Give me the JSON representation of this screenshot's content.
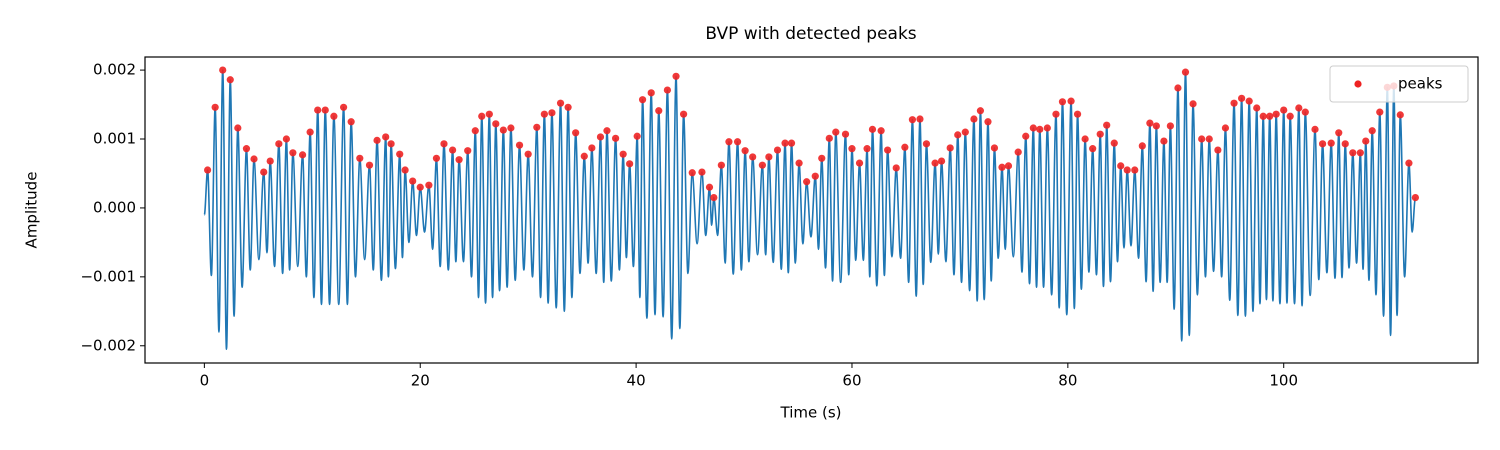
{
  "chart_data": {
    "type": "line",
    "title": "BVP with detected peaks",
    "xlabel": "Time (s)",
    "ylabel": "Amplitude",
    "xlim": [
      -5.5,
      118
    ],
    "ylim": [
      -0.00225,
      0.00219
    ],
    "xticks": [
      0,
      20,
      40,
      60,
      80,
      100
    ],
    "yticks": [
      {
        "value": -0.002,
        "label": "−0.002"
      },
      {
        "value": -0.001,
        "label": "−0.001"
      },
      {
        "value": 0,
        "label": "0.000"
      },
      0.001,
      0.002
    ],
    "legend": "upper right",
    "series": [
      {
        "type": "line",
        "color": "#1f77b4",
        "x": [
          0,
          0.3,
          0.65,
          1.0,
          1.35,
          1.7,
          2.05,
          2.4,
          2.75,
          3.1,
          3.5,
          3.9,
          4.25,
          4.6,
          5.05,
          5.5,
          5.8,
          6.1,
          6.5,
          6.9,
          7.25,
          7.6,
          7.9,
          8.2,
          8.65,
          9.1,
          9.45,
          9.8,
          10.15,
          10.5,
          10.85,
          11.2,
          11.6,
          12.0,
          12.45,
          12.9,
          13.25,
          13.6,
          14.0,
          14.4,
          14.85,
          15.3,
          15.65,
          16.0,
          16.4,
          16.8,
          17.05,
          17.3,
          17.7,
          18.1,
          18.35,
          18.6,
          18.95,
          19.3,
          19.65,
          20.0,
          20.4,
          20.8,
          21.15,
          21.5,
          21.85,
          22.2,
          22.6,
          23.0,
          23.3,
          23.6,
          24.0,
          24.4,
          24.75,
          25.1,
          25.4,
          25.7,
          26.05,
          26.4,
          26.7,
          27.0,
          27.35,
          27.7,
          28.05,
          28.4,
          28.8,
          29.2,
          29.6,
          30.0,
          30.4,
          30.8,
          31.15,
          31.5,
          31.85,
          32.2,
          32.6,
          33.0,
          33.35,
          33.7,
          34.05,
          34.4,
          34.8,
          35.2,
          35.55,
          35.9,
          36.3,
          36.7,
          37.0,
          37.3,
          37.7,
          38.1,
          38.45,
          38.8,
          39.1,
          39.4,
          39.75,
          40.1,
          40.35,
          40.6,
          41.0,
          41.4,
          41.75,
          42.1,
          42.5,
          42.9,
          43.3,
          43.7,
          44.05,
          44.4,
          44.8,
          45.2,
          45.65,
          46.1,
          46.45,
          46.8,
          47.0,
          47.2,
          47.55,
          47.9,
          48.25,
          48.6,
          49.0,
          49.4,
          49.75,
          50.1,
          50.45,
          50.8,
          51.25,
          51.7,
          52.0,
          52.3,
          52.7,
          53.1,
          53.45,
          53.8,
          54.1,
          54.4,
          54.75,
          55.1,
          55.45,
          55.8,
          56.2,
          56.6,
          56.9,
          57.2,
          57.55,
          57.9,
          58.2,
          58.5,
          58.95,
          59.4,
          59.7,
          60.0,
          60.35,
          60.7,
          61.05,
          61.4,
          61.65,
          61.9,
          62.3,
          62.7,
          63.0,
          63.3,
          63.7,
          64.1,
          64.5,
          64.9,
          65.25,
          65.6,
          65.95,
          66.3,
          66.6,
          66.9,
          67.3,
          67.7,
          68.0,
          68.3,
          68.7,
          69.1,
          69.45,
          69.8,
          70.15,
          70.5,
          70.9,
          71.3,
          71.6,
          71.9,
          72.25,
          72.6,
          72.9,
          73.2,
          73.55,
          73.9,
          74.2,
          74.5,
          74.95,
          75.4,
          75.75,
          76.1,
          76.45,
          76.8,
          77.1,
          77.4,
          77.75,
          78.1,
          78.5,
          78.9,
          79.2,
          79.5,
          79.9,
          80.3,
          80.6,
          80.9,
          81.25,
          81.6,
          81.95,
          82.3,
          82.65,
          83.0,
          83.3,
          83.6,
          83.95,
          84.3,
          84.6,
          84.9,
          85.2,
          85.5,
          85.85,
          86.2,
          86.55,
          86.9,
          87.25,
          87.6,
          87.9,
          88.2,
          88.55,
          88.9,
          89.2,
          89.5,
          89.85,
          90.2,
          90.55,
          90.9,
          91.25,
          91.6,
          92.0,
          92.4,
          92.75,
          93.1,
          93.5,
          93.9,
          94.25,
          94.6,
          95.0,
          95.4,
          95.75,
          96.1,
          96.45,
          96.8,
          97.15,
          97.5,
          97.8,
          98.1,
          98.4,
          98.7,
          99.0,
          99.3,
          99.65,
          100.0,
          100.3,
          100.6,
          101.0,
          101.4,
          101.7,
          102.0,
          102.45,
          102.9,
          103.25,
          103.6,
          104.0,
          104.4,
          104.75,
          105.1,
          105.4,
          105.7,
          106.05,
          106.4,
          106.75,
          107.1,
          107.35,
          107.6,
          107.9,
          108.2,
          108.55,
          108.9,
          109.25,
          109.6,
          109.9,
          110.2,
          110.5,
          110.8,
          111.2,
          111.6,
          111.9,
          112.2
        ],
        "values": [
          -0.0001,
          0.00055,
          -0.00098,
          0.00146,
          -0.0018,
          0.002,
          -0.00205,
          0.00186,
          -0.00157,
          0.00116,
          -0.00115,
          0.00086,
          -0.0009,
          0.00071,
          -0.00075,
          0.00052,
          -0.00065,
          0.00068,
          -0.00085,
          0.00093,
          -0.00095,
          0.001,
          -0.0009,
          0.0008,
          -0.00085,
          0.00077,
          -0.001,
          0.0011,
          -0.0013,
          0.00142,
          -0.0014,
          0.00142,
          -0.0014,
          0.00133,
          -0.0014,
          0.00146,
          -0.0014,
          0.00125,
          -0.001,
          0.00072,
          -0.00075,
          0.00062,
          -0.0009,
          0.00098,
          -0.00105,
          0.00103,
          -0.001,
          0.00093,
          -0.00088,
          0.00078,
          -0.00072,
          0.00055,
          -0.0005,
          0.00039,
          -0.0004,
          0.0003,
          -0.00035,
          0.00033,
          -0.0006,
          0.00072,
          -0.00085,
          0.00093,
          -0.0009,
          0.00084,
          -0.00078,
          0.0007,
          -0.00078,
          0.00083,
          -0.001,
          0.00112,
          -0.0013,
          0.00133,
          -0.00138,
          0.00136,
          -0.0013,
          0.00122,
          -0.0012,
          0.00113,
          -0.00115,
          0.00116,
          -0.00105,
          0.00091,
          -0.0009,
          0.00078,
          -0.001,
          0.00117,
          -0.0013,
          0.00136,
          -0.00138,
          0.00138,
          -0.00145,
          0.00152,
          -0.0015,
          0.00146,
          -0.0013,
          0.00109,
          -0.00095,
          0.00075,
          -0.0008,
          0.00087,
          -0.00095,
          0.00103,
          -0.00108,
          0.00112,
          -0.00106,
          0.00101,
          -0.0009,
          0.00078,
          -0.00072,
          0.00064,
          -0.00085,
          0.00104,
          -0.0013,
          0.00157,
          -0.0016,
          0.00167,
          -0.00155,
          0.00141,
          -0.00158,
          0.00171,
          -0.0019,
          0.00191,
          -0.00175,
          0.00136,
          -0.00095,
          0.00051,
          -0.00052,
          0.00052,
          -0.0004,
          0.0003,
          -0.00025,
          0.00015,
          -0.0004,
          0.00062,
          -0.0008,
          0.00096,
          -0.00096,
          0.00096,
          -0.0009,
          0.00083,
          -0.00078,
          0.00074,
          -0.00068,
          0.00062,
          -0.00068,
          0.00074,
          -0.00079,
          0.00084,
          -0.00089,
          0.00094,
          -0.00094,
          0.00094,
          -0.0008,
          0.00065,
          -0.00052,
          0.00038,
          -0.00042,
          0.00046,
          -0.0006,
          0.00072,
          -0.00087,
          0.00101,
          -0.00106,
          0.0011,
          -0.00108,
          0.00107,
          -0.00097,
          0.00086,
          -0.00076,
          0.00065,
          -0.00076,
          0.00086,
          -0.001,
          0.00114,
          -0.00113,
          0.00112,
          -0.00098,
          0.00084,
          -0.00071,
          0.00058,
          -0.00073,
          0.00088,
          -0.00108,
          0.00128,
          -0.00128,
          0.00129,
          -0.00111,
          0.00093,
          -0.00079,
          0.00065,
          -0.00067,
          0.00068,
          -0.00078,
          0.00087,
          -0.00097,
          0.00106,
          -0.00108,
          0.0011,
          -0.0012,
          0.00129,
          -0.00135,
          0.00141,
          -0.00133,
          0.00125,
          -0.00106,
          0.00087,
          -0.00073,
          0.00059,
          -0.0006,
          0.00061,
          -0.00071,
          0.00081,
          -0.00093,
          0.00104,
          -0.0011,
          0.00116,
          -0.00115,
          0.00114,
          -0.00115,
          0.00116,
          -0.00126,
          0.00136,
          -0.00145,
          0.00154,
          -0.00155,
          0.00155,
          -0.00146,
          0.00136,
          -0.00118,
          0.001,
          -0.00093,
          0.00086,
          -0.00097,
          0.00107,
          -0.00114,
          0.0012,
          -0.00107,
          0.00094,
          -0.00078,
          0.00061,
          -0.00058,
          0.00055,
          -0.00055,
          0.00055,
          -0.00073,
          0.0009,
          -0.00107,
          0.00123,
          -0.00121,
          0.00119,
          -0.00108,
          0.00097,
          -0.00108,
          0.00119,
          -0.00147,
          0.00174,
          -0.00193,
          0.00197,
          -0.00185,
          0.00151,
          -0.00126,
          0.001,
          -0.001,
          0.001,
          -0.00092,
          0.00084,
          -0.001,
          0.00116,
          -0.00134,
          0.00152,
          -0.00156,
          0.00159,
          -0.00157,
          0.00155,
          -0.0015,
          0.00145,
          -0.00139,
          0.00133,
          -0.00133,
          0.00133,
          -0.00135,
          0.00136,
          -0.00139,
          0.00142,
          -0.00138,
          0.00133,
          -0.00139,
          0.00145,
          -0.00142,
          0.00139,
          -0.00127,
          0.00114,
          -0.00104,
          0.00093,
          -0.00094,
          0.00094,
          -0.00102,
          0.00109,
          -0.00101,
          0.00093,
          -0.00087,
          0.0008,
          -0.0008,
          0.0008,
          -0.00089,
          0.00097,
          -0.00105,
          0.00112,
          -0.00126,
          0.00139,
          -0.00157,
          0.00175,
          -0.00185,
          0.00177,
          -0.00156,
          0.00135,
          -0.001,
          0.00065,
          -0.00035,
          0.00015
        ]
      },
      {
        "type": "scatter",
        "name": "peaks",
        "color": "#ee2222",
        "x": [
          0.3,
          1.0,
          1.7,
          2.4,
          3.1,
          3.9,
          4.6,
          5.5,
          6.1,
          6.9,
          7.6,
          8.2,
          9.1,
          9.8,
          10.5,
          11.2,
          12.0,
          12.9,
          13.6,
          14.4,
          15.3,
          16.0,
          16.8,
          17.3,
          18.1,
          18.6,
          19.3,
          20.0,
          20.8,
          21.5,
          22.2,
          23.0,
          23.6,
          24.4,
          25.1,
          25.7,
          26.4,
          27.0,
          27.7,
          28.4,
          29.2,
          30.0,
          30.8,
          31.5,
          32.2,
          33.0,
          33.7,
          34.4,
          35.2,
          35.9,
          36.7,
          37.3,
          38.1,
          38.8,
          39.4,
          40.1,
          40.6,
          41.4,
          42.1,
          42.9,
          43.7,
          44.4,
          45.2,
          46.1,
          46.8,
          47.2,
          47.9,
          48.6,
          49.4,
          50.1,
          50.8,
          51.7,
          52.3,
          53.1,
          53.8,
          54.4,
          55.1,
          55.8,
          56.6,
          57.2,
          57.9,
          58.5,
          59.4,
          60.0,
          60.7,
          61.4,
          61.9,
          62.7,
          63.3,
          64.1,
          64.9,
          65.6,
          66.3,
          66.9,
          67.7,
          68.3,
          69.1,
          69.8,
          70.5,
          71.3,
          71.9,
          72.6,
          73.2,
          73.9,
          74.5,
          75.4,
          76.1,
          76.8,
          77.4,
          78.1,
          78.9,
          79.5,
          80.3,
          80.9,
          81.6,
          82.3,
          83.0,
          83.6,
          84.3,
          84.9,
          85.5,
          86.2,
          86.9,
          87.6,
          88.2,
          88.9,
          89.5,
          90.2,
          90.9,
          91.6,
          92.4,
          93.1,
          93.9,
          94.6,
          95.4,
          96.1,
          96.8,
          97.5,
          98.1,
          98.7,
          99.3,
          100.0,
          100.6,
          101.4,
          102.0,
          102.9,
          103.6,
          104.4,
          105.1,
          105.7,
          106.4,
          107.1,
          107.6,
          108.2,
          108.9,
          109.6,
          110.2,
          110.8,
          111.6,
          112.2
        ],
        "values": [
          0.00055,
          0.00146,
          0.002,
          0.00186,
          0.00116,
          0.00086,
          0.00071,
          0.00052,
          0.00068,
          0.00093,
          0.001,
          0.0008,
          0.00077,
          0.0011,
          0.00142,
          0.00142,
          0.00133,
          0.00146,
          0.00125,
          0.00072,
          0.00062,
          0.00098,
          0.00103,
          0.00093,
          0.00078,
          0.00055,
          0.00039,
          0.0003,
          0.00033,
          0.00072,
          0.00093,
          0.00084,
          0.0007,
          0.00083,
          0.00112,
          0.00133,
          0.00136,
          0.00122,
          0.00113,
          0.00116,
          0.00091,
          0.00078,
          0.00117,
          0.00136,
          0.00138,
          0.00152,
          0.00146,
          0.00109,
          0.00075,
          0.00087,
          0.00103,
          0.00112,
          0.00101,
          0.00078,
          0.00064,
          0.00104,
          0.00157,
          0.00167,
          0.00141,
          0.00171,
          0.00191,
          0.00136,
          0.00051,
          0.00052,
          0.0003,
          0.00015,
          0.00062,
          0.00096,
          0.00096,
          0.00083,
          0.00074,
          0.00062,
          0.00074,
          0.00084,
          0.00094,
          0.00094,
          0.00065,
          0.00038,
          0.00046,
          0.00072,
          0.00101,
          0.0011,
          0.00107,
          0.00086,
          0.00065,
          0.00086,
          0.00114,
          0.00112,
          0.00084,
          0.00058,
          0.00088,
          0.00128,
          0.00129,
          0.00093,
          0.00065,
          0.00068,
          0.00087,
          0.00106,
          0.0011,
          0.00129,
          0.00141,
          0.00125,
          0.00087,
          0.00059,
          0.00061,
          0.00081,
          0.00104,
          0.00116,
          0.00114,
          0.00116,
          0.00136,
          0.00154,
          0.00155,
          0.00136,
          0.001,
          0.00086,
          0.00107,
          0.0012,
          0.00094,
          0.00061,
          0.00055,
          0.00055,
          0.0009,
          0.00123,
          0.00119,
          0.00097,
          0.00119,
          0.00174,
          0.00197,
          0.00151,
          0.001,
          0.001,
          0.00084,
          0.00116,
          0.00152,
          0.00159,
          0.00155,
          0.00145,
          0.00133,
          0.00133,
          0.00136,
          0.00142,
          0.00133,
          0.00145,
          0.00139,
          0.00114,
          0.00093,
          0.00094,
          0.00109,
          0.00093,
          0.0008,
          0.0008,
          0.00097,
          0.00112,
          0.00139,
          0.00175,
          0.00177,
          0.00135,
          0.00065,
          0.00015
        ]
      }
    ]
  }
}
